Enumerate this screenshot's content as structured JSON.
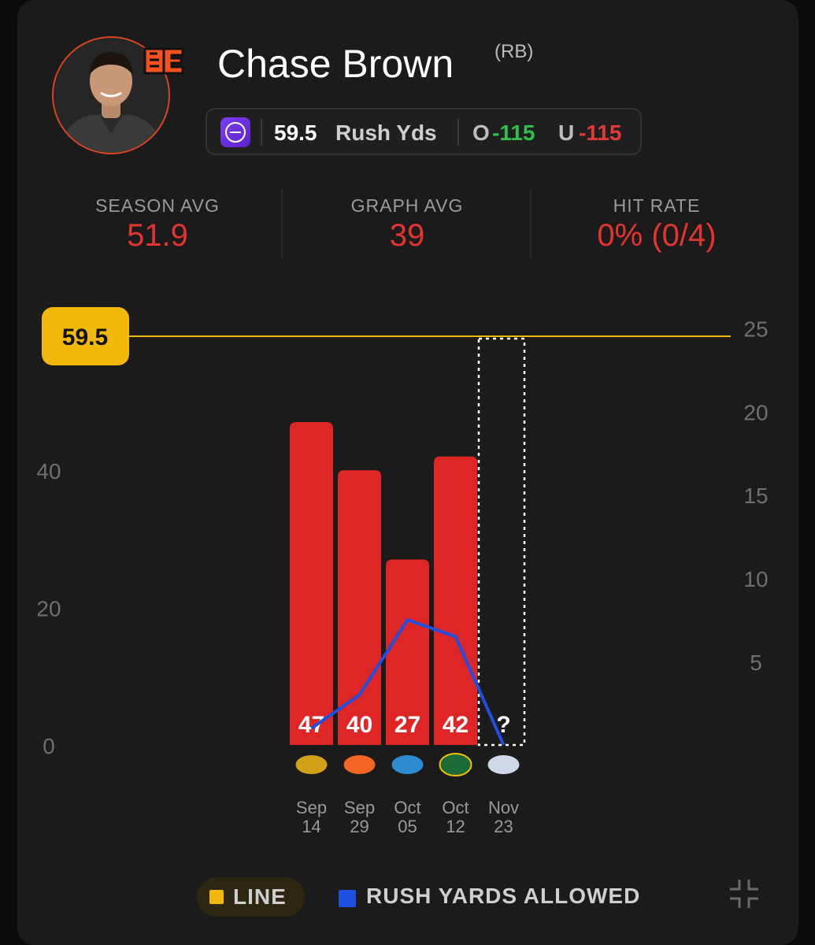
{
  "player": {
    "name": "Chase Brown",
    "position": "(RB)"
  },
  "prop": {
    "line": "59.5",
    "stat": "Rush Yds",
    "over_label": "O",
    "over_odds": "-115",
    "under_label": "U",
    "under_odds": "-115"
  },
  "stats": [
    {
      "label": "SEASON AVG",
      "value": "51.9"
    },
    {
      "label": "GRAPH AVG",
      "value": "39"
    },
    {
      "label": "HIT RATE",
      "value": "0% (0/4)"
    }
  ],
  "legend": {
    "line_label": "LINE",
    "rya_label": "RUSH YARDS ALLOWED"
  },
  "colors": {
    "bar": "#df2626",
    "line": "#f0b90b",
    "rya": "#1e4fe0",
    "accent_red": "#e5342f",
    "over_green": "#2fbf4a"
  },
  "icons": {
    "sportsbook": "hard-rock-bet-icon",
    "team": "bengals-logo",
    "collapse": "collapse-icon"
  },
  "chart_data": {
    "type": "bar",
    "categories": [
      "Sep 14",
      "Sep 29",
      "Oct 05",
      "Oct 12",
      "Nov 23"
    ],
    "dates": [
      [
        "Sep",
        "14"
      ],
      [
        "Sep",
        "29"
      ],
      [
        "Oct",
        "05"
      ],
      [
        "Oct",
        "12"
      ],
      [
        "Nov",
        "23"
      ]
    ],
    "opponents": [
      "jaguars-logo",
      "broncos-logo",
      "lions-logo",
      "packers-logo",
      "patriots-logo"
    ],
    "series": [
      {
        "name": "",
        "values": [
          47,
          40,
          27,
          42,
          null
        ],
        "labels": [
          "47",
          "40",
          "27",
          "42",
          "?"
        ],
        "axis": "left"
      },
      {
        "name": "RUSH YARDS ALLOWED",
        "values": [
          1,
          3,
          7.5,
          6.5,
          0
        ],
        "axis": "right"
      }
    ],
    "line_value": 59.5,
    "line_label": "59.5",
    "left_ticks": [
      0,
      20,
      40
    ],
    "right_ticks": [
      5,
      10,
      15,
      20,
      25
    ],
    "ylim_left": [
      0,
      59.5
    ],
    "ylim_right": [
      0,
      24.5
    ],
    "upcoming_index": 4,
    "grid": false,
    "legend_position": "bottom"
  }
}
